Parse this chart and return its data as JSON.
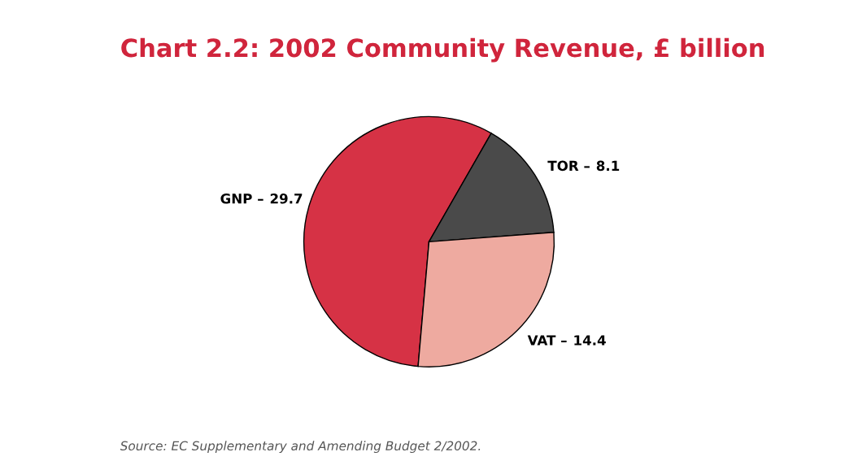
{
  "chart_data": {
    "type": "pie",
    "title": "Chart 2.2: 2002 Community Revenue, £ billion",
    "categories": [
      "GNP –",
      "TOR –",
      "VAT –"
    ],
    "values": [
      29.7,
      8.1,
      14.4
    ],
    "data_labels": true,
    "colors": [
      "#d63245",
      "#4a4a4a",
      "#eeaaa0"
    ],
    "annotations": [
      "Source: EC Supplementary and Amending Budget 2/2002."
    ]
  }
}
